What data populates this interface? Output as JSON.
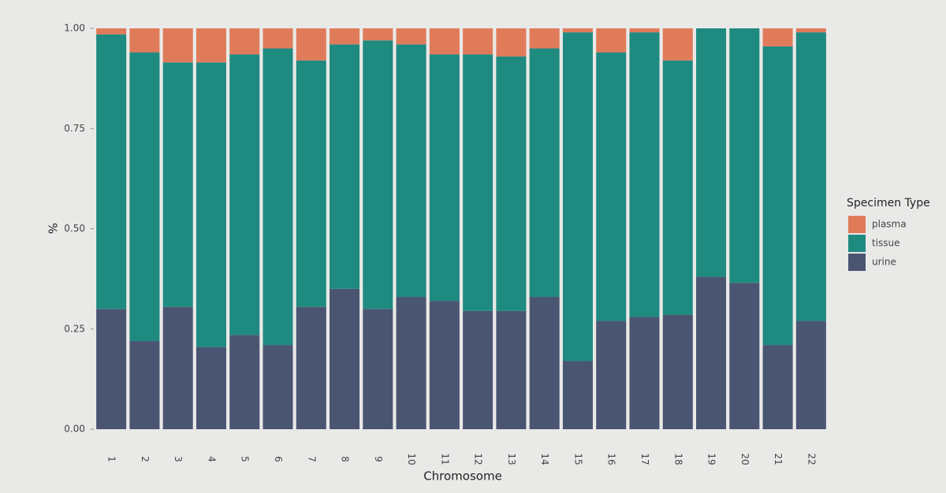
{
  "chart_data": {
    "type": "stacked_bar",
    "x_label": "Chromosome",
    "y_label": "%",
    "legend_title": "Specimen Type",
    "legend_position": "right",
    "categories": [
      "1",
      "2",
      "3",
      "4",
      "5",
      "6",
      "7",
      "8",
      "9",
      "10",
      "11",
      "12",
      "13",
      "14",
      "15",
      "16",
      "17",
      "18",
      "19",
      "20",
      "21",
      "22"
    ],
    "series": [
      {
        "name": "plasma",
        "color": "#e07b5a",
        "values": [
          0.015,
          0.06,
          0.085,
          0.085,
          0.065,
          0.05,
          0.08,
          0.04,
          0.03,
          0.04,
          0.065,
          0.065,
          0.07,
          0.05,
          0.01,
          0.06,
          0.01,
          0.08,
          0,
          0,
          0.045,
          0.01
        ]
      },
      {
        "name": "tissue",
        "color": "#1f8a80",
        "values": [
          0.685,
          0.72,
          0.61,
          0.71,
          0.7,
          0.74,
          0.615,
          0.61,
          0.67,
          0.63,
          0.615,
          0.64,
          0.635,
          0.62,
          0.82,
          0.67,
          0.71,
          0.635,
          0.62,
          0.635,
          0.745,
          0.72
        ]
      },
      {
        "name": "urine",
        "color": "#4a5572",
        "values": [
          0.3,
          0.22,
          0.305,
          0.205,
          0.235,
          0.21,
          0.305,
          0.35,
          0.3,
          0.33,
          0.32,
          0.295,
          0.295,
          0.33,
          0.17,
          0.27,
          0.28,
          0.285,
          0.38,
          0.365,
          0.21,
          0.27
        ]
      }
    ],
    "ylim": [
      0,
      1
    ],
    "yticks": [
      {
        "value": 0,
        "label": "0.00"
      },
      {
        "value": 0.25,
        "label": "0.25"
      },
      {
        "value": 0.5,
        "label": "0.50"
      },
      {
        "value": 0.75,
        "label": "0.75"
      },
      {
        "value": 1,
        "label": "1.00"
      }
    ],
    "grid": false
  }
}
